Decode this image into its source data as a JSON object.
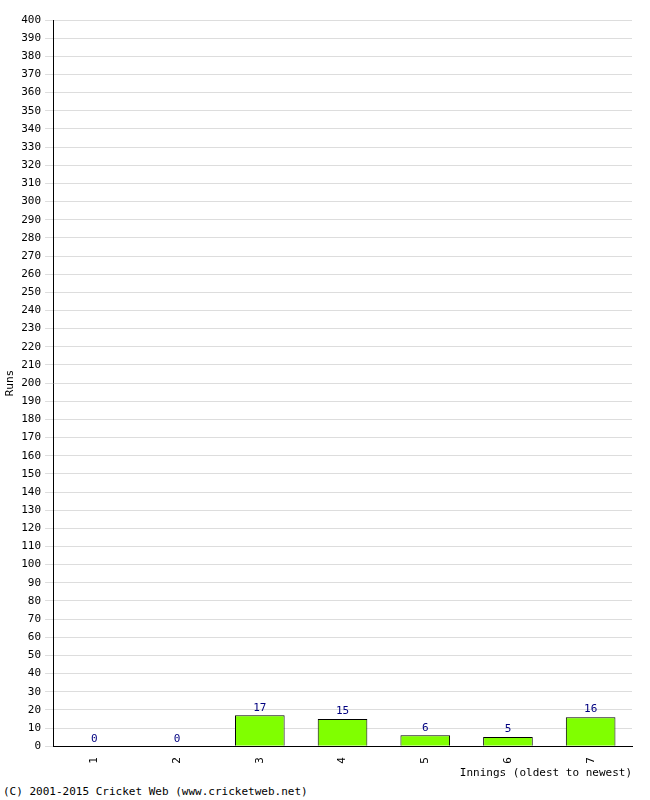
{
  "chart_data": {
    "type": "bar",
    "y_label": "Runs",
    "x_label": "Innings (oldest to newest)",
    "annotation": "(C) 2001-2015 Cricket Web (www.cricketweb.net)",
    "categories": [
      "1",
      "2",
      "3",
      "4",
      "5",
      "6",
      "7"
    ],
    "values": [
      0,
      0,
      17,
      15,
      6,
      5,
      16
    ],
    "color": "#80ff00",
    "ylim": [
      0,
      400
    ],
    "yticks": [
      0,
      10,
      20,
      30,
      40,
      50,
      60,
      70,
      80,
      90,
      100,
      110,
      120,
      130,
      140,
      150,
      160,
      170,
      180,
      190,
      200,
      210,
      220,
      230,
      240,
      250,
      260,
      270,
      280,
      290,
      300,
      310,
      320,
      330,
      340,
      350,
      360,
      370,
      380,
      390,
      400
    ],
    "grid": true,
    "data_labels": true
  }
}
